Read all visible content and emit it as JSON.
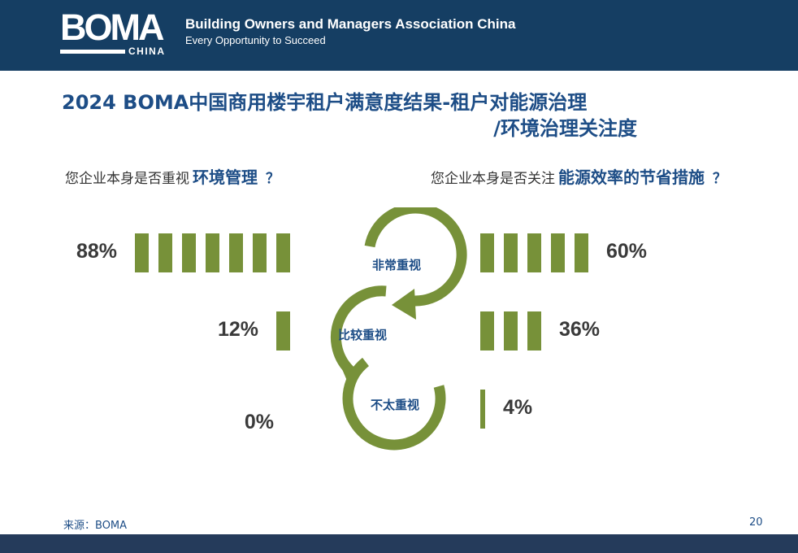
{
  "header": {
    "logo_text": "BOMA",
    "logo_sub": "CHINA",
    "org_name": "Building Owners and Managers Association China",
    "slogan": "Every Opportunity to Succeed"
  },
  "colors": {
    "header_bg": "#153e63",
    "accent_green": "#779139",
    "title_blue": "#1d4d86",
    "footer_bar": "#253b5b"
  },
  "title": {
    "line1": "2024 BOMA中国商用楼宇租户满意度结果-租户对能源治理",
    "line2": "/环境治理关注度"
  },
  "questions": {
    "left_prefix": "您企业本身是否重视",
    "left_topic": "环境管理",
    "left_mark": "？",
    "right_prefix": "您企业本身是否关注",
    "right_topic": "能源效率的节省措施",
    "right_mark": "？"
  },
  "chart_data": {
    "type": "bar",
    "categories": [
      "非常重视",
      "比较重视",
      "不太重视"
    ],
    "series": [
      {
        "values": [
          88,
          12,
          0
        ],
        "labels": [
          "88%",
          "12%",
          "0%"
        ]
      },
      {
        "values": [
          60,
          36,
          4
        ],
        "labels": [
          "60%",
          "36%",
          "4%"
        ]
      }
    ],
    "unit": "%"
  },
  "footer": {
    "source": "来源：BOMA",
    "page": "20"
  }
}
